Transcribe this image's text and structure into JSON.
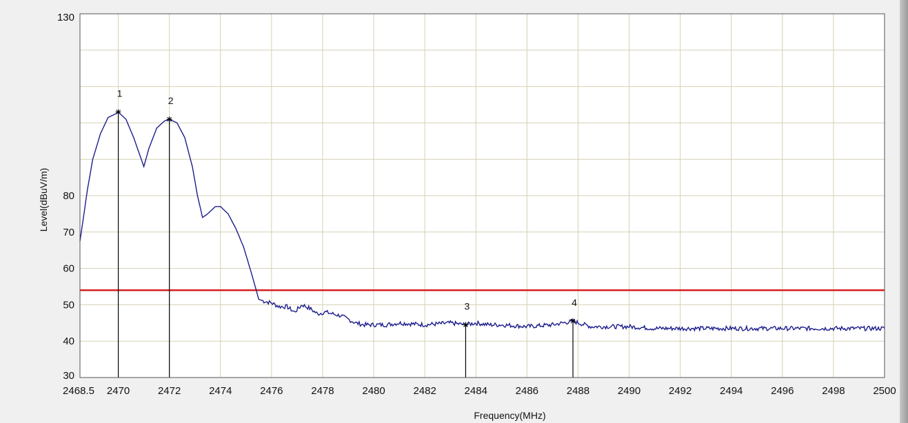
{
  "chart_data": {
    "type": "line",
    "xlabel": "Frequency(MHz)",
    "ylabel": "Level(dBuV/m)",
    "xlim": [
      2468.5,
      2500
    ],
    "ylim": [
      30,
      130
    ],
    "grid": true,
    "x_ticks": [
      {
        "value": 2468.5,
        "label": "2468.5"
      },
      {
        "value": 2470,
        "label": "2470"
      },
      {
        "value": 2472,
        "label": "2472"
      },
      {
        "value": 2474,
        "label": "2474"
      },
      {
        "value": 2476,
        "label": "2476"
      },
      {
        "value": 2478,
        "label": "2478"
      },
      {
        "value": 2480,
        "label": "2480"
      },
      {
        "value": 2482,
        "label": "2482"
      },
      {
        "value": 2484,
        "label": "2484"
      },
      {
        "value": 2486,
        "label": "2486"
      },
      {
        "value": 2488,
        "label": "2488"
      },
      {
        "value": 2490,
        "label": "2490"
      },
      {
        "value": 2492,
        "label": "2492"
      },
      {
        "value": 2494,
        "label": "2494"
      },
      {
        "value": 2496,
        "label": "2496"
      },
      {
        "value": 2498,
        "label": "2498"
      },
      {
        "value": 2500,
        "label": "2500"
      }
    ],
    "x_gridlines": [
      2470,
      2472,
      2474,
      2476,
      2478,
      2480,
      2482,
      2484,
      2486,
      2488,
      2490,
      2492,
      2494,
      2496,
      2498
    ],
    "y_ticks": [
      {
        "value": 30,
        "label": "30"
      },
      {
        "value": 40,
        "label": "40"
      },
      {
        "value": 50,
        "label": "50"
      },
      {
        "value": 60,
        "label": "60"
      },
      {
        "value": 70,
        "label": "70"
      },
      {
        "value": 80,
        "label": "80"
      },
      {
        "value": 130,
        "label": "130"
      }
    ],
    "y_gridlines": [
      40,
      50,
      60,
      70,
      80,
      90,
      100,
      110,
      120
    ],
    "limit_line": {
      "y": 54,
      "color": "#d42020"
    },
    "series": [
      {
        "color": "#1c1c8c",
        "x": [
          2468.5,
          2468.8,
          2469.0,
          2469.3,
          2469.6,
          2469.9,
          2470.0,
          2470.3,
          2470.6,
          2470.8,
          2471.0,
          2471.2,
          2471.5,
          2471.8,
          2472.0,
          2472.3,
          2472.6,
          2472.9,
          2473.1,
          2473.3,
          2473.5,
          2473.8,
          2474.0,
          2474.3,
          2474.6,
          2474.9,
          2475.2,
          2475.5,
          2475.7,
          2476.0,
          2476.3,
          2476.6,
          2476.9,
          2477.2,
          2477.5,
          2477.8,
          2478.1,
          2478.4,
          2478.7,
          2479.0,
          2479.3,
          2479.6,
          2480.0,
          2480.5,
          2481.0,
          2482.0,
          2483.0,
          2483.6,
          2484.0,
          2484.5,
          2485.0,
          2486.0,
          2487.0,
          2487.8,
          2488.5,
          2489.0,
          2490.0,
          2491.0,
          2492.0,
          2493.0,
          2494.0,
          2495.0,
          2496.0,
          2497.0,
          2498.0,
          2499.0,
          2500.0
        ],
        "y": [
          67.5,
          82,
          90,
          97,
          101.5,
          102.5,
          103,
          101,
          96,
          92,
          88,
          93,
          98.5,
          100.5,
          101,
          100,
          96,
          88,
          80,
          74,
          75,
          77,
          77,
          75,
          71,
          66,
          59,
          51.5,
          51,
          50.5,
          49.5,
          49.5,
          48,
          50,
          49,
          47.5,
          48,
          47.5,
          47,
          46,
          45,
          44.5,
          44.5,
          44.5,
          45,
          44.5,
          45,
          44.5,
          45,
          44.5,
          44.5,
          44,
          44.5,
          45.5,
          44,
          44,
          44,
          43.5,
          43.5,
          43.5,
          43.5,
          43.5,
          43.5,
          43.5,
          43.5,
          43.5,
          43.5
        ]
      }
    ],
    "markers": [
      {
        "label": "1",
        "x": 2470.0,
        "y": 103
      },
      {
        "label": "2",
        "x": 2472.0,
        "y": 101
      },
      {
        "label": "3",
        "x": 2483.6,
        "y": 44.5
      },
      {
        "label": "4",
        "x": 2487.8,
        "y": 45.5
      }
    ]
  }
}
